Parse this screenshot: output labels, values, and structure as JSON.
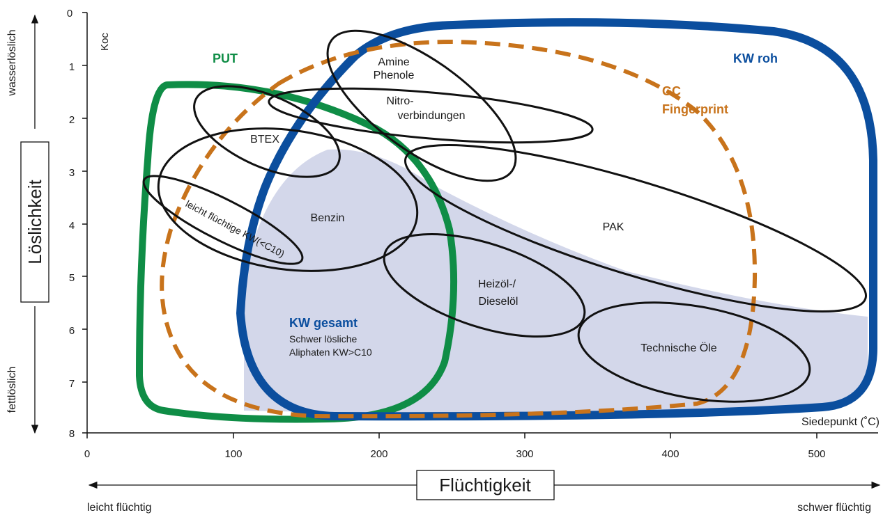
{
  "axes": {
    "y_ticks": [
      "0",
      "1",
      "2",
      "3",
      "4",
      "5",
      "6",
      "7",
      "8"
    ],
    "x_ticks": [
      "0",
      "100",
      "200",
      "300",
      "400",
      "500"
    ],
    "koc_label": "Koc",
    "siedepunkt_label": "Siedepunkt (˚C)"
  },
  "left": {
    "top": "wasserlöslich",
    "title": "Löslichkeit",
    "bottom": "fettlöslich"
  },
  "bottom": {
    "left": "leicht flüchtig",
    "title": "Flüchtigkeit",
    "right": "schwer flüchtig"
  },
  "regions": {
    "put": "PUT",
    "kw_roh": "KW roh",
    "gc_line1": "GC",
    "gc_line2": "Fingerprint",
    "kw_gesamt": "KW gesamt",
    "kw_gesamt_sub1": "Schwer lösliche",
    "kw_gesamt_sub2": "Aliphaten KW>C10"
  },
  "groups": {
    "amine": "Amine",
    "phenole": "Phenole",
    "nitro1": "Nitro-",
    "nitro2": "verbindungen",
    "btex": "BTEX",
    "leicht": "leicht flüchtige KW(<C10)",
    "benzin": "Benzin",
    "pak": "PAK",
    "heizoel1": "Heizöl-/",
    "heizoel2": "Dieselöl",
    "technische": "Technische Öle"
  },
  "colors": {
    "green": "#0f8d46",
    "blue": "#0b4e9e",
    "orange": "#c8731b",
    "fill": "#d3d7ea",
    "black": "#111111"
  }
}
